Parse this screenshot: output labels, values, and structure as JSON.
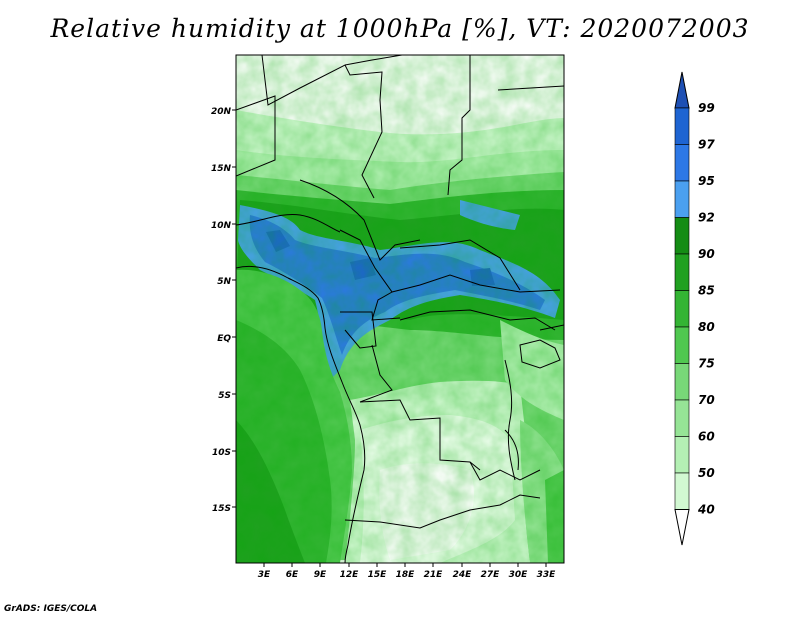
{
  "title": "Relative humidity at 1000hPa [%], VT: 2020072003",
  "credit": "GrADS: IGES/COLA",
  "map": {
    "lat_labels": [
      "20N",
      "15N",
      "10N",
      "5N",
      "EQ",
      "5S",
      "10S",
      "15S"
    ],
    "lon_labels": [
      "3E",
      "6E",
      "9E",
      "12E",
      "15E",
      "18E",
      "21E",
      "24E",
      "27E",
      "30E",
      "33E"
    ]
  },
  "colorbar": {
    "levels": [
      "99",
      "97",
      "95",
      "92",
      "90",
      "85",
      "80",
      "75",
      "70",
      "60",
      "50",
      "40"
    ],
    "colors": [
      "#1e64d2",
      "#2d78e6",
      "#4ba0f0",
      "#148c14",
      "#20a020",
      "#34b434",
      "#50c850",
      "#78d878",
      "#96e496",
      "#b4f0b4",
      "#d2f8d2",
      "#f0fff0"
    ],
    "top_color": "#1e50b4",
    "bottom_color": "#ffffff"
  }
}
